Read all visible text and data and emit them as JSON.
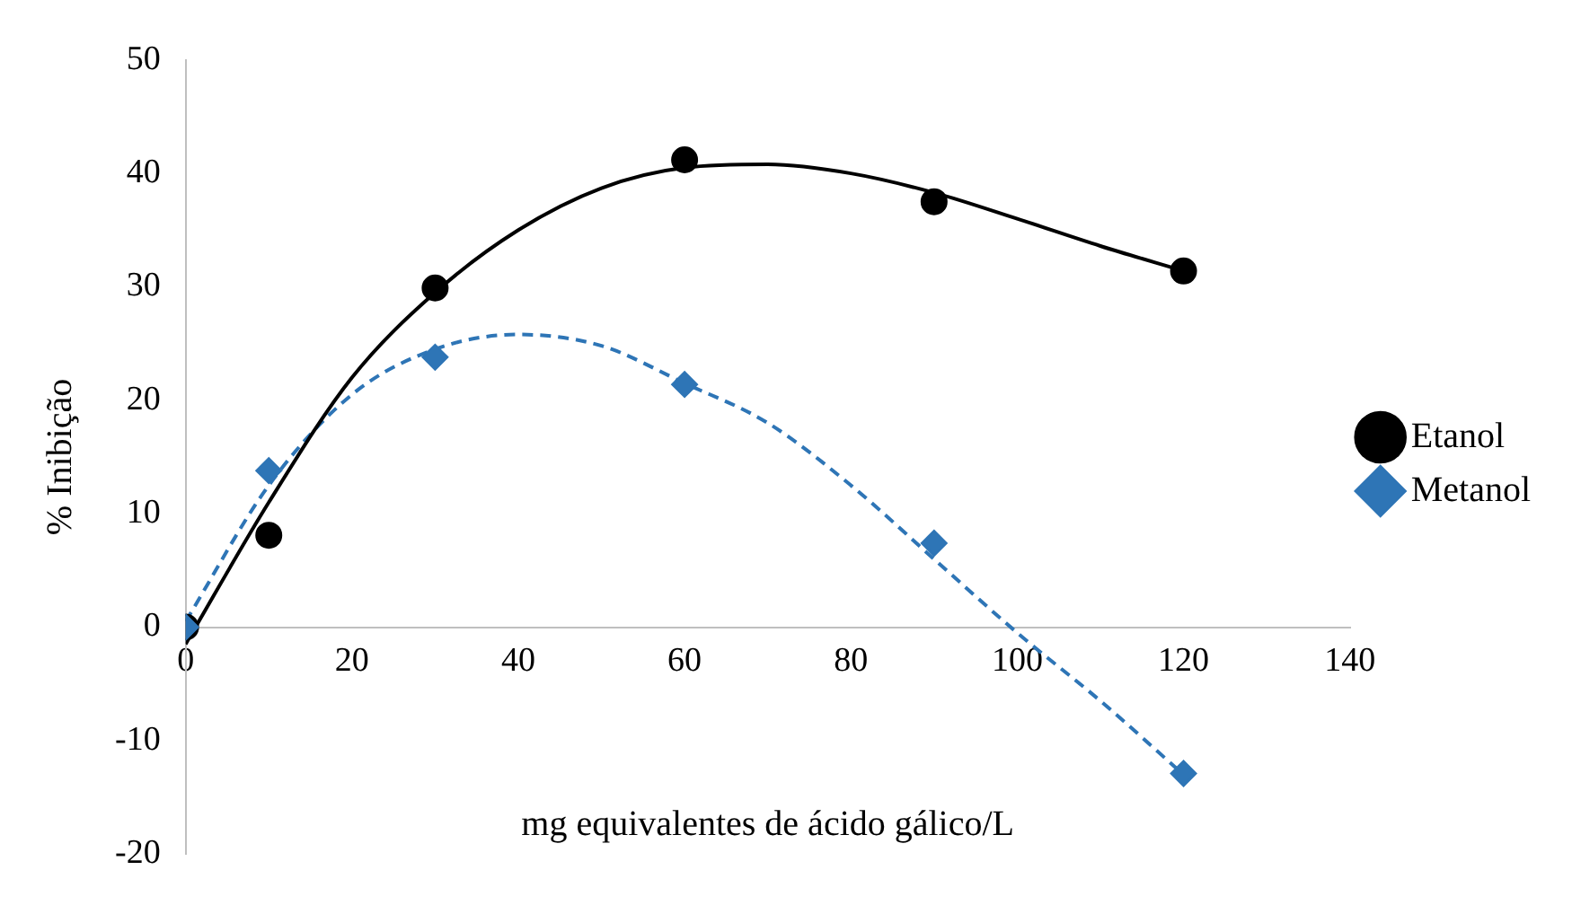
{
  "chart_data": {
    "type": "scatter",
    "xlabel": "mg equivalentes de ácido gálico/L",
    "ylabel": "% Inibição",
    "xlim": [
      0,
      140
    ],
    "xticks": [
      0,
      20,
      40,
      60,
      80,
      100,
      120,
      140
    ],
    "ylim": [
      -20,
      50
    ],
    "yticks": [
      -20,
      -10,
      0,
      10,
      20,
      30,
      40,
      50
    ],
    "grid": false,
    "legend": "right",
    "series": [
      {
        "name": "Etanol",
        "color": "#000000",
        "marker": "circle",
        "x": [
          0,
          10,
          30,
          60,
          90,
          120
        ],
        "values": [
          0,
          8.1,
          29.9,
          41.2,
          37.5,
          31.4
        ]
      },
      {
        "name": "Metanol",
        "color": "#2e75b6",
        "marker": "diamond",
        "x": [
          0,
          10,
          30,
          60,
          90,
          120
        ],
        "values": [
          0,
          13.8,
          23.8,
          21.4,
          7.4,
          -12.9
        ]
      },
      {
        "type": "line",
        "color": "#000000",
        "marker": "none",
        "line_style": "solid",
        "x": [
          0,
          10,
          20,
          30,
          40,
          50,
          60,
          70,
          80,
          90,
          100,
          110,
          120
        ],
        "values": [
          -1.5,
          11,
          22,
          29.5,
          35,
          38.7,
          40.5,
          40.8,
          40,
          38.3,
          36,
          33.6,
          31.4
        ]
      },
      {
        "type": "line",
        "color": "#2e75b6",
        "marker": "none",
        "line_style": "dashed",
        "x": [
          0,
          10,
          20,
          30,
          40,
          50,
          60,
          70,
          80,
          90,
          100,
          110,
          120
        ],
        "values": [
          0.5,
          12.5,
          20.5,
          24.5,
          25.8,
          24.8,
          21.5,
          18,
          12.5,
          6,
          -0.5,
          -6.5,
          -13
        ]
      }
    ]
  }
}
